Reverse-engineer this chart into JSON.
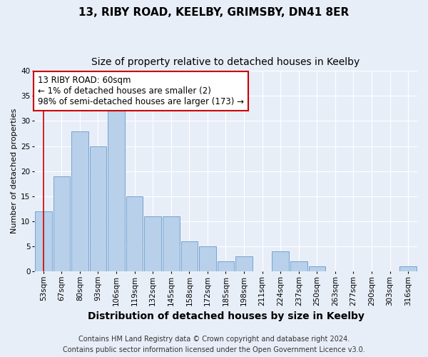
{
  "title1": "13, RIBY ROAD, KEELBY, GRIMSBY, DN41 8ER",
  "title2": "Size of property relative to detached houses in Keelby",
  "xlabel": "Distribution of detached houses by size in Keelby",
  "ylabel": "Number of detached properties",
  "categories": [
    "53sqm",
    "67sqm",
    "80sqm",
    "93sqm",
    "106sqm",
    "119sqm",
    "132sqm",
    "145sqm",
    "158sqm",
    "172sqm",
    "185sqm",
    "198sqm",
    "211sqm",
    "224sqm",
    "237sqm",
    "250sqm",
    "263sqm",
    "277sqm",
    "290sqm",
    "303sqm",
    "316sqm"
  ],
  "values": [
    12,
    19,
    28,
    25,
    32,
    15,
    11,
    11,
    6,
    5,
    2,
    3,
    0,
    4,
    2,
    1,
    0,
    0,
    0,
    0,
    1
  ],
  "bar_color": "#b8d0ea",
  "bar_edge_color": "#6699cc",
  "highlight_color": "#cc0000",
  "annotation_line1": "13 RIBY ROAD: 60sqm",
  "annotation_line2": "← 1% of detached houses are smaller (2)",
  "annotation_line3": "98% of semi-detached houses are larger (173) →",
  "annotation_box_color": "white",
  "annotation_box_edge": "#cc0000",
  "ylim": [
    0,
    40
  ],
  "yticks": [
    0,
    5,
    10,
    15,
    20,
    25,
    30,
    35,
    40
  ],
  "footnote": "Contains HM Land Registry data © Crown copyright and database right 2024.\nContains public sector information licensed under the Open Government Licence v3.0.",
  "bg_color": "#e8eef8",
  "plot_bg_color": "#e8eef8",
  "grid_color": "#ffffff",
  "title_fontsize": 11,
  "subtitle_fontsize": 10,
  "xlabel_fontsize": 10,
  "ylabel_fontsize": 8,
  "tick_fontsize": 7.5,
  "annotation_fontsize": 8.5,
  "footnote_fontsize": 7
}
